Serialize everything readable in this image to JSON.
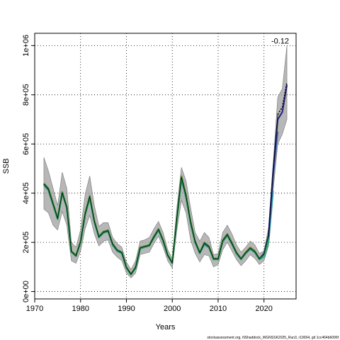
{
  "chart_data": {
    "type": "line",
    "xlabel": "Years",
    "ylabel": "SSB",
    "xlim": [
      1970,
      2027
    ],
    "ylim": [
      -30000,
      1050000
    ],
    "x_ticks": [
      1970,
      1980,
      1990,
      2000,
      2010,
      2020
    ],
    "y_ticks": [
      {
        "value": 0,
        "label": "0e+00"
      },
      {
        "value": 200000,
        "label": "2e+05"
      },
      {
        "value": 400000,
        "label": "4e+05"
      },
      {
        "value": 600000,
        "label": "6e+05"
      },
      {
        "value": 800000,
        "label": "8e+05"
      },
      {
        "value": 1000000,
        "label": "1e+06"
      }
    ],
    "grid": true,
    "annotation": "-0.12",
    "footnote": "stockassessment.org, NShaddock_WGNSSK2025_Run3, r19004, git 1cc464b6096f",
    "band": {
      "x": [
        1972,
        1973,
        1974,
        1975,
        1976,
        1977,
        1978,
        1979,
        1980,
        1981,
        1982,
        1983,
        1984,
        1985,
        1986,
        1987,
        1988,
        1989,
        1990,
        1991,
        1992,
        1993,
        1994,
        1995,
        1996,
        1997,
        1998,
        1999,
        2000,
        2001,
        2002,
        2003,
        2004,
        2005,
        2006,
        2007,
        2008,
        2009,
        2010,
        2011,
        2012,
        2013,
        2014,
        2015,
        2016,
        2017,
        2018,
        2019,
        2020,
        2021,
        2022,
        2023,
        2024,
        2025
      ],
      "upper": [
        545000,
        490000,
        420000,
        350000,
        485000,
        420000,
        200000,
        180000,
        250000,
        395000,
        470000,
        350000,
        265000,
        280000,
        280000,
        220000,
        195000,
        180000,
        120000,
        90000,
        125000,
        205000,
        210000,
        220000,
        255000,
        285000,
        240000,
        170000,
        135000,
        340000,
        505000,
        450000,
        340000,
        240000,
        205000,
        240000,
        220000,
        150000,
        155000,
        240000,
        270000,
        235000,
        190000,
        160000,
        180000,
        205000,
        190000,
        155000,
        165000,
        260000,
        520000,
        790000,
        825000,
        1000000
      ],
      "lower": [
        335000,
        320000,
        270000,
        250000,
        325000,
        270000,
        125000,
        115000,
        165000,
        255000,
        310000,
        235000,
        185000,
        205000,
        210000,
        160000,
        140000,
        125000,
        75000,
        55000,
        75000,
        150000,
        155000,
        160000,
        195000,
        225000,
        180000,
        125000,
        95000,
        250000,
        370000,
        320000,
        210000,
        155000,
        120000,
        150000,
        145000,
        100000,
        110000,
        170000,
        200000,
        165000,
        130000,
        105000,
        125000,
        150000,
        135000,
        110000,
        125000,
        185000,
        410000,
        600000,
        640000,
        700000
      ]
    },
    "series": [
      {
        "color": "#8a9a2a",
        "x": [
          1972,
          1973,
          1974,
          1975,
          1976,
          1977,
          1978,
          1979,
          1980,
          1981,
          1982,
          1983,
          1984,
          1985,
          1986,
          1987,
          1988,
          1989,
          1990,
          1991,
          1992,
          1993,
          1994,
          1995,
          1996,
          1997,
          1998,
          1999,
          2000,
          2001,
          2002,
          2003,
          2004,
          2005,
          2006,
          2007,
          2008,
          2009,
          2010,
          2011,
          2012,
          2013,
          2014,
          2015,
          2016,
          2017,
          2018,
          2019
        ],
        "values": [
          440000,
          420000,
          360000,
          300000,
          405000,
          345000,
          165000,
          148000,
          205000,
          320000,
          390000,
          290000,
          225000,
          245000,
          250000,
          195000,
          170000,
          160000,
          100000,
          72000,
          100000,
          180000,
          185000,
          190000,
          225000,
          255000,
          210000,
          150000,
          118000,
          300000,
          470000,
          395000,
          285000,
          205000,
          160000,
          200000,
          185000,
          135000,
          135000,
          210000,
          235000,
          200000,
          160000,
          135000,
          160000,
          180000,
          165000,
          135000
        ]
      },
      {
        "color": "#3aa9a0",
        "x": [
          1972,
          1973,
          1974,
          1975,
          1976,
          1977,
          1978,
          1979,
          1980,
          1981,
          1982,
          1983,
          1984,
          1985,
          1986,
          1987,
          1988,
          1989,
          1990,
          1991,
          1992,
          1993,
          1994,
          1995,
          1996,
          1997,
          1998,
          1999,
          2000,
          2001,
          2002,
          2003,
          2004,
          2005,
          2006,
          2007,
          2008,
          2009,
          2010,
          2011,
          2012,
          2013,
          2014,
          2015,
          2016,
          2017,
          2018,
          2019,
          2020,
          2021,
          2022
        ],
        "values": [
          432000,
          410000,
          352000,
          293000,
          398000,
          338000,
          160000,
          143000,
          199000,
          310000,
          378000,
          282000,
          219000,
          238000,
          243000,
          188000,
          164000,
          154000,
          95000,
          68000,
          95000,
          174000,
          180000,
          185000,
          218000,
          248000,
          204000,
          145000,
          114000,
          292000,
          455000,
          380000,
          275000,
          197000,
          155000,
          190000,
          178000,
          130000,
          130000,
          202000,
          226000,
          192000,
          154000,
          130000,
          154000,
          172000,
          158000,
          130000,
          140000,
          200000,
          410000
        ]
      },
      {
        "color": "#3e6fb8",
        "x": [
          1972,
          1973,
          1974,
          1975,
          1976,
          1977,
          1978,
          1979,
          1980,
          1981,
          1982,
          1983,
          1984,
          1985,
          1986,
          1987,
          1988,
          1989,
          1990,
          1991,
          1992,
          1993,
          1994,
          1995,
          1996,
          1997,
          1998,
          1999,
          2000,
          2001,
          2002,
          2003,
          2004,
          2005,
          2006,
          2007,
          2008,
          2009,
          2010,
          2011,
          2012,
          2013,
          2014,
          2015,
          2016,
          2017,
          2018,
          2019,
          2020,
          2021,
          2022,
          2023
        ],
        "values": [
          435000,
          413000,
          355000,
          296000,
          401000,
          341000,
          162000,
          145000,
          201000,
          314000,
          382000,
          285000,
          221000,
          240000,
          246000,
          191000,
          166000,
          157000,
          97000,
          70000,
          97000,
          176000,
          182000,
          187000,
          221000,
          251000,
          207000,
          147000,
          116000,
          296000,
          460000,
          385000,
          279000,
          200000,
          157000,
          194000,
          181000,
          132000,
          132000,
          205000,
          229000,
          195000,
          156000,
          132000,
          156000,
          175000,
          161000,
          132000,
          150000,
          225000,
          470000,
          650000
        ]
      },
      {
        "color": "#2a2a80",
        "x": [
          1972,
          1973,
          1974,
          1975,
          1976,
          1977,
          1978,
          1979,
          1980,
          1981,
          1982,
          1983,
          1984,
          1985,
          1986,
          1987,
          1988,
          1989,
          1990,
          1991,
          1992,
          1993,
          1994,
          1995,
          1996,
          1997,
          1998,
          1999,
          2000,
          2001,
          2002,
          2003,
          2004,
          2005,
          2006,
          2007,
          2008,
          2009,
          2010,
          2011,
          2012,
          2013,
          2014,
          2015,
          2016,
          2017,
          2018,
          2019,
          2020,
          2021,
          2022,
          2023,
          2024,
          2025
        ],
        "values": [
          438000,
          416000,
          357000,
          298000,
          403000,
          343000,
          163000,
          146000,
          203000,
          317000,
          386000,
          287000,
          223000,
          242000,
          248000,
          193000,
          168000,
          159000,
          98000,
          71000,
          98000,
          178000,
          183000,
          188000,
          223000,
          253000,
          208000,
          148000,
          117000,
          298000,
          465000,
          390000,
          282000,
          202000,
          158000,
          197000,
          183000,
          133000,
          133000,
          207000,
          232000,
          197000,
          158000,
          133000,
          158000,
          177000,
          163000,
          133000,
          155000,
          230000,
          490000,
          700000,
          730000,
          840000
        ]
      },
      {
        "color": "#2aa844",
        "x": [
          1972,
          1973,
          1974,
          1975,
          1976,
          1977,
          1978,
          1979,
          1980,
          1981,
          1982,
          1983,
          1984,
          1985,
          1986,
          1987,
          1988,
          1989,
          1990,
          1991,
          1992,
          1993,
          1994,
          1995,
          1996,
          1997,
          1998,
          1999,
          2000,
          2001,
          2002,
          2003,
          2004,
          2005,
          2006,
          2007,
          2008,
          2009,
          2010,
          2011,
          2012,
          2013,
          2014,
          2015,
          2016,
          2017,
          2018,
          2019,
          2020,
          2021
        ],
        "values": [
          436000,
          414000,
          356000,
          297000,
          402000,
          342000,
          162000,
          146000,
          202000,
          316000,
          384000,
          286000,
          222000,
          241000,
          247000,
          192000,
          167000,
          158000,
          98000,
          70000,
          98000,
          177000,
          183000,
          188000,
          222000,
          252000,
          207000,
          148000,
          117000,
          297000,
          463000,
          388000,
          280000,
          201000,
          158000,
          196000,
          182000,
          132000,
          133000,
          206000,
          231000,
          196000,
          157000,
          133000,
          157000,
          176000,
          162000,
          133000,
          150000,
          220000
        ]
      }
    ],
    "reference_line": {
      "color": "#000000",
      "x": [
        1972,
        1973,
        1974,
        1975,
        1976,
        1977,
        1978,
        1979,
        1980,
        1981,
        1982,
        1983,
        1984,
        1985,
        1986,
        1987,
        1988,
        1989,
        1990,
        1991,
        1992,
        1993,
        1994,
        1995,
        1996,
        1997,
        1998,
        1999,
        2000,
        2001,
        2002,
        2003,
        2004,
        2005,
        2006,
        2007,
        2008,
        2009,
        2010,
        2011,
        2012,
        2013,
        2014,
        2015,
        2016,
        2017,
        2018,
        2019,
        2020,
        2021,
        2022,
        2023,
        2024,
        2025
      ],
      "values": [
        437000,
        415000,
        356000,
        297000,
        402000,
        342000,
        163000,
        146000,
        202000,
        316000,
        385000,
        286000,
        222000,
        241000,
        247000,
        192000,
        167000,
        158000,
        98000,
        70000,
        98000,
        177000,
        183000,
        188000,
        222000,
        252000,
        208000,
        148000,
        117000,
        297000,
        464000,
        389000,
        281000,
        202000,
        158000,
        196000,
        182000,
        133000,
        133000,
        206000,
        231000,
        196000,
        157000,
        133000,
        157000,
        176000,
        162000,
        133000,
        152000,
        226000,
        485000,
        720000,
        750000,
        850000
      ],
      "dotted_from": 2023
    }
  }
}
